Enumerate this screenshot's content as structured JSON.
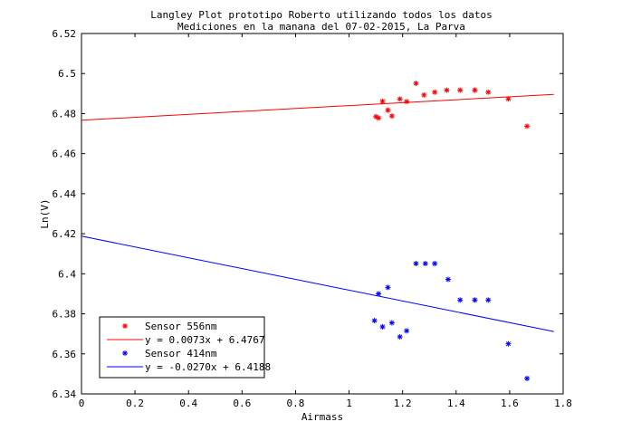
{
  "chart_data": {
    "type": "scatter",
    "title": "Langley Plot prototipo Roberto utilizando todos los datos",
    "subtitle": "Mediciones en la manana del 07-02-2015, La Parva",
    "xlabel": "Airmass",
    "ylabel": "Ln(V)",
    "xlim": [
      0,
      1.8
    ],
    "ylim": [
      6.34,
      6.52
    ],
    "xticks": [
      "0",
      "0.2",
      "0.4",
      "0.6",
      "0.8",
      "1",
      "1.2",
      "1.4",
      "1.6",
      "1.8"
    ],
    "yticks": [
      "6.34",
      "6.36",
      "6.38",
      "6.4",
      "6.42",
      "6.44",
      "6.46",
      "6.48",
      "6.5",
      "6.52"
    ],
    "grid": false,
    "legend_position": "bottom-left",
    "series": [
      {
        "name": "Sensor 556nm",
        "marker": "*",
        "color": "#ff0000",
        "points": [
          [
            1.1,
            6.4785
          ],
          [
            1.11,
            6.4778
          ],
          [
            1.125,
            6.4861
          ],
          [
            1.145,
            6.4817
          ],
          [
            1.16,
            6.4788
          ],
          [
            1.19,
            6.4873
          ],
          [
            1.215,
            6.486
          ],
          [
            1.25,
            6.4951
          ],
          [
            1.28,
            6.4893
          ],
          [
            1.32,
            6.4907
          ],
          [
            1.365,
            6.4917
          ],
          [
            1.415,
            6.4917
          ],
          [
            1.47,
            6.4917
          ],
          [
            1.52,
            6.4907
          ],
          [
            1.595,
            6.4873
          ],
          [
            1.665,
            6.4737
          ]
        ]
      },
      {
        "name": "Sensor 414nm",
        "marker": "*",
        "color": "#0000ff",
        "points": [
          [
            1.095,
            6.3766
          ],
          [
            1.11,
            6.39
          ],
          [
            1.125,
            6.3735
          ],
          [
            1.145,
            6.3932
          ],
          [
            1.16,
            6.3755
          ],
          [
            1.19,
            6.3685
          ],
          [
            1.215,
            6.3715
          ],
          [
            1.25,
            6.4051
          ],
          [
            1.285,
            6.4051
          ],
          [
            1.32,
            6.4051
          ],
          [
            1.37,
            6.3972
          ],
          [
            1.415,
            6.3869
          ],
          [
            1.47,
            6.3869
          ],
          [
            1.52,
            6.3869
          ],
          [
            1.595,
            6.365
          ],
          [
            1.665,
            6.3477
          ]
        ]
      }
    ],
    "fits": [
      {
        "label": "y = 0.0073x + 6.4767",
        "color": "#ff0000",
        "slope": 0.0073,
        "intercept": 6.4767,
        "x_range": [
          0,
          1.765
        ]
      },
      {
        "label": "y = -0.0270x + 6.4188",
        "color": "#0000ff",
        "slope": -0.027,
        "intercept": 6.4188,
        "x_range": [
          0,
          1.765
        ]
      }
    ]
  }
}
